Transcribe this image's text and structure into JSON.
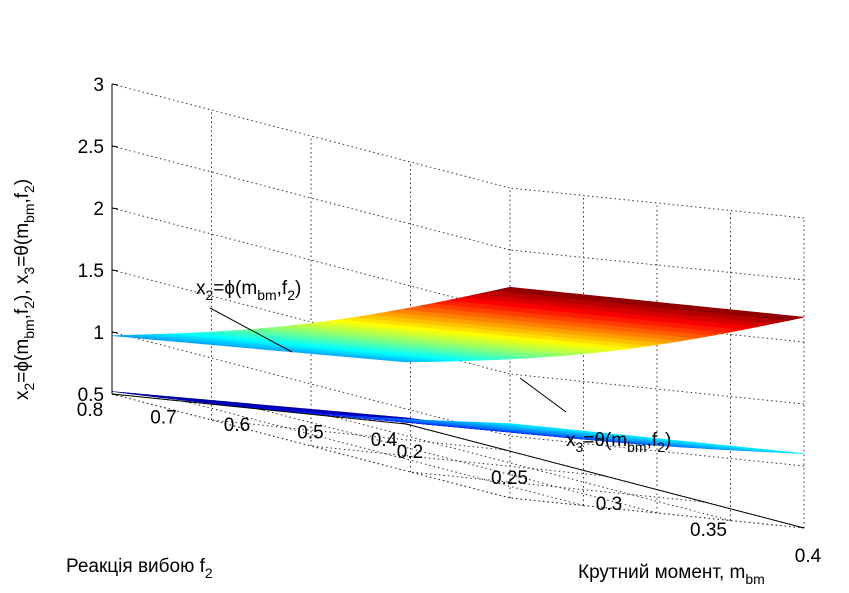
{
  "chart_data": {
    "type": "surface",
    "title": "",
    "axes": {
      "x": {
        "label": "Крутний момент, m",
        "label_sub": "bm",
        "ticks": [
          "0.2",
          "0.25",
          "0.3",
          "0.35",
          "0.4"
        ],
        "range": [
          0.2,
          0.4
        ]
      },
      "y": {
        "label": "Реакція вибою f",
        "label_sub": "2",
        "ticks": [
          "0.4",
          "0.5",
          "0.6",
          "0.7",
          "0.8"
        ],
        "range": [
          0.4,
          0.8
        ]
      },
      "z": {
        "label": "x2=ϕ(mbm,f2), x3=θ(mbm,f2)",
        "ticks": [
          "0.5",
          "1",
          "1.5",
          "2",
          "2.5",
          "3"
        ],
        "range": [
          0.5,
          3
        ]
      }
    },
    "grid": true,
    "colormap": "jet",
    "series": [
      {
        "name": "x2=ϕ(mbm,f2)",
        "corners": {
          "x_min_y_min": 1.0,
          "x_min_y_max": 0.97,
          "x_max_y_min": 2.2,
          "x_max_y_max": 2.2
        }
      },
      {
        "name": "x3=θ(mbm,f2)",
        "corners": {
          "x_min_y_min": 0.55,
          "x_min_y_max": 0.52,
          "x_max_y_min": 1.1,
          "x_max_y_max": 1.1
        }
      }
    ],
    "annotations": [
      {
        "text": "x2=ϕ(mbm,f2)",
        "target": "upper"
      },
      {
        "text": "x3=θ(mbm,f2)",
        "target": "lower"
      }
    ]
  },
  "labels": {
    "xaxis_main": "Крутний момент, m",
    "xaxis_sub": "bm",
    "yaxis_main": "Реакція вибою f",
    "yaxis_sub": "2",
    "zaxis_parts": [
      "x",
      "2",
      "=ϕ(m",
      "bm",
      ",f",
      "2",
      "), x",
      "3",
      "=θ(m",
      "bm",
      ",f",
      "2",
      ")"
    ],
    "ann_upper_parts": [
      "x",
      "2",
      "=ϕ(m",
      "bm",
      ",f",
      "2",
      ")"
    ],
    "ann_lower_parts": [
      "x",
      "3",
      "=θ(m",
      "bm",
      ",f",
      "2",
      ")"
    ]
  }
}
